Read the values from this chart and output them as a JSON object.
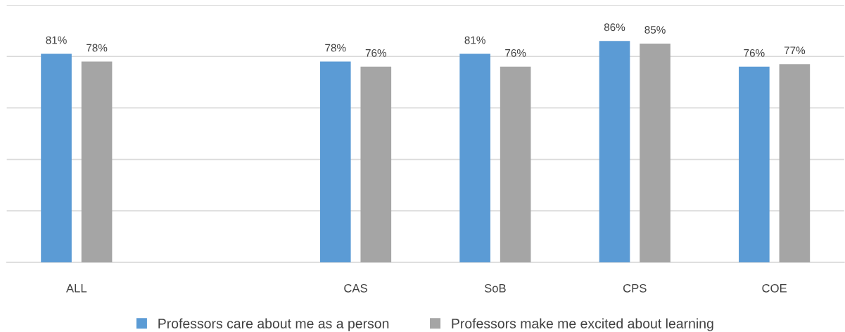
{
  "chart_data": {
    "type": "bar",
    "categories": [
      "ALL",
      null,
      "CAS",
      "SoB",
      "CPS",
      "COE"
    ],
    "series": [
      {
        "name": "Professors care about me as a person",
        "color": "#5b9bd5",
        "values": [
          81,
          null,
          78,
          81,
          86,
          76
        ],
        "value_labels": [
          "81%",
          null,
          "78%",
          "81%",
          "86%",
          "76%"
        ]
      },
      {
        "name": "Professors make me excited about learning",
        "color": "#a5a5a5",
        "values": [
          78,
          null,
          76,
          76,
          85,
          77
        ],
        "value_labels": [
          "78%",
          null,
          "76%",
          "76%",
          "85%",
          "77%"
        ]
      }
    ],
    "ylim": [
      0,
      100
    ],
    "yticks": [
      {
        "value": 0,
        "label": null
      },
      {
        "value": 20,
        "label": null
      },
      {
        "value": 40,
        "label": null
      },
      {
        "value": 60,
        "label": null
      },
      {
        "value": 80,
        "label": null
      },
      {
        "value": 100,
        "label": null
      }
    ],
    "grid": "y",
    "legend": "bottom",
    "tick_labels": "x"
  }
}
